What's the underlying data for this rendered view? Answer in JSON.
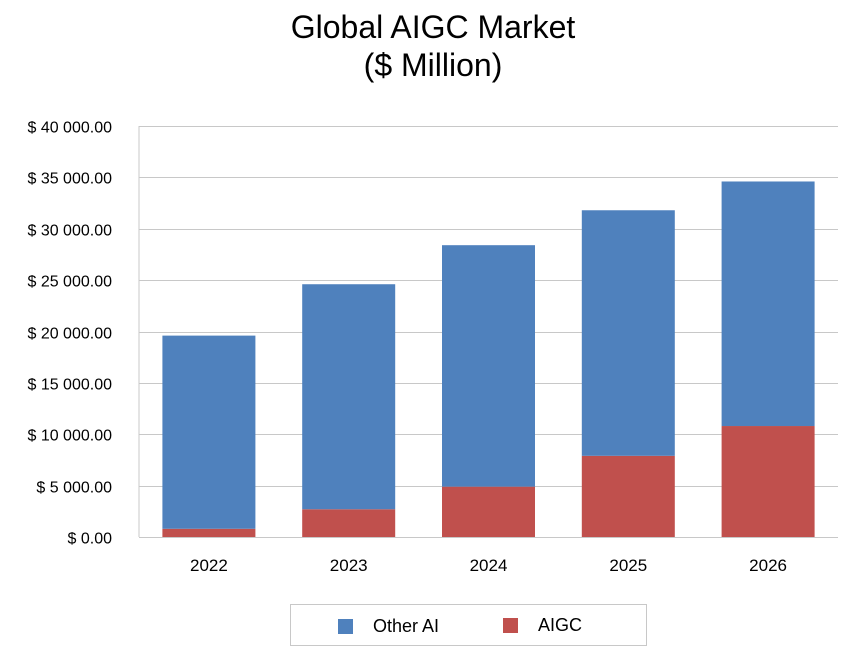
{
  "chart_data": {
    "type": "bar",
    "stacked": true,
    "title_lines": [
      "Global AIGC Market",
      "($ Million)"
    ],
    "categories": [
      "2022",
      "2023",
      "2024",
      "2025",
      "2026"
    ],
    "series": [
      {
        "name": "AIGC",
        "color": "#c0504d",
        "values": [
          800,
          2700,
          4900,
          7900,
          10800
        ]
      },
      {
        "name": "Other AI",
        "color": "#4f81bd",
        "values": [
          18800,
          21900,
          23500,
          23900,
          23800
        ]
      }
    ],
    "y_ticks": [
      {
        "value": 0,
        "label": "$ 0.00"
      },
      {
        "value": 5000,
        "label": "$ 5 000.00"
      },
      {
        "value": 10000,
        "label": "$ 10 000.00"
      },
      {
        "value": 15000,
        "label": "$ 15 000.00"
      },
      {
        "value": 20000,
        "label": "$ 20 000.00"
      },
      {
        "value": 25000,
        "label": "$ 25 000.00"
      },
      {
        "value": 30000,
        "label": "$ 30 000.00"
      },
      {
        "value": 35000,
        "label": "$ 35 000.00"
      },
      {
        "value": 40000,
        "label": "$ 40 000.00"
      }
    ],
    "ylim": [
      0,
      40000
    ],
    "grid": true,
    "xlabel": "",
    "ylabel": "",
    "legend": {
      "placement": "bottom",
      "entries": [
        {
          "name": "Other AI",
          "color": "#4f81bd"
        },
        {
          "name": "AIGC",
          "color": "#c0504d"
        }
      ]
    }
  }
}
